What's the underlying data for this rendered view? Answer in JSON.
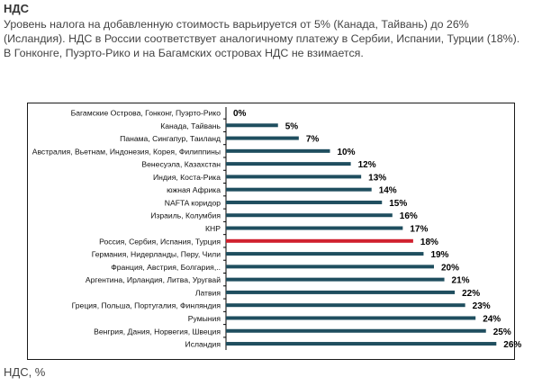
{
  "heading": "НДС",
  "paragraph": "Уровень налога на добавленную стоимость варьируется от 5% (Канада, Тайвань) до 26% (Исландия). НДС в России соответствует аналогичному платежу в Сербии, Испании, Турции (18%). В Гонконге, Пуэрто-Рико и на Багамских островах НДС не взимается.",
  "footer": "НДС, %",
  "chart_data": {
    "type": "bar",
    "orientation": "horizontal",
    "categories": [
      "Багамские Острова, Гонконг, Пуэрто-Рико",
      "Канада, Тайвань",
      "Панама, Сингапур, Таиланд",
      "Австралия, Вьетнам, Индонезия, Корея, Филиппины",
      "Венесуэла, Казахстан",
      "Индия, Коста-Рика",
      "южная Африка",
      "NAFTA коридор",
      "Израиль, Колумбия",
      "КНР",
      "Россия, Сербия, Испания, Турция",
      "Германия, Нидерланды, Перу, Чили",
      "Франция, Австрия, Болгария,..",
      "Аргентина, Ирландия, Литва, Уругвай",
      "Латвия",
      "Греция, Польша, Португалия, Финляндия",
      "Румыния",
      "Венгрия, Дания, Норвегия, Швеция",
      "Исландия"
    ],
    "values": [
      0,
      5,
      7,
      10,
      12,
      13,
      14,
      15,
      16,
      17,
      18,
      19,
      20,
      21,
      22,
      23,
      24,
      25,
      26
    ],
    "value_labels": [
      "0%",
      "5%",
      "7%",
      "10%",
      "12%",
      "13%",
      "14%",
      "15%",
      "16%",
      "17%",
      "18%",
      "19%",
      "20%",
      "21%",
      "22%",
      "23%",
      "24%",
      "25%",
      "26%"
    ],
    "highlight_index": 10,
    "xlim": [
      0,
      26
    ],
    "grid": false,
    "colors": {
      "bar": "#1f4e5f",
      "highlight": "#d0202e",
      "axis": "#000000"
    }
  }
}
